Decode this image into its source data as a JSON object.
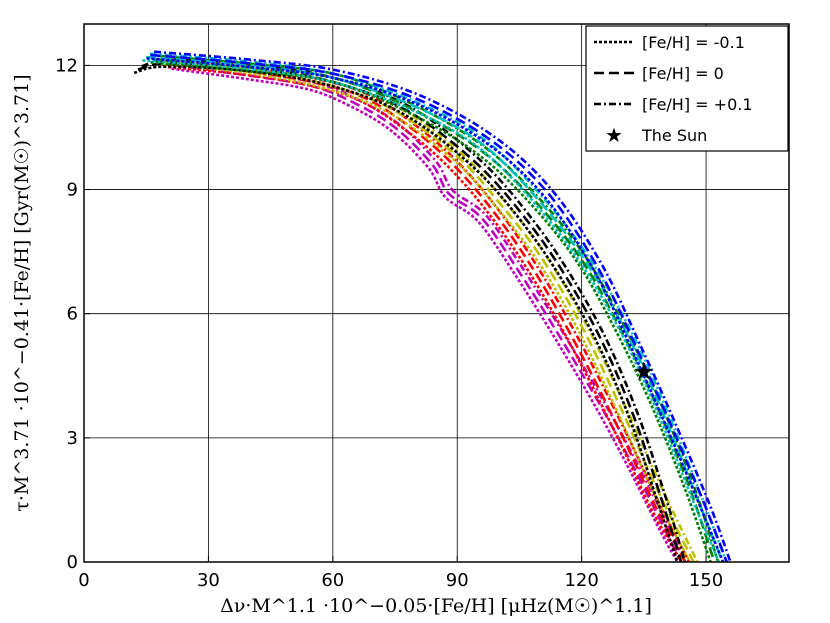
{
  "chart_data": {
    "type": "line",
    "xlabel": "Δν·M^1.1 ·10^−0.05·[Fe/H] [μHz(M☉)^1.1]",
    "ylabel": "τ·M^3.71 ·10^−0.41·[Fe/H] [Gyr(M☉)^3.71]",
    "xlim": [
      0,
      170
    ],
    "ylim": [
      0,
      13
    ],
    "xticks": [
      0,
      30,
      60,
      90,
      120,
      150
    ],
    "yticks": [
      0,
      3,
      6,
      9,
      12
    ],
    "xtick_labels": [
      "0",
      "30",
      "60",
      "90",
      "120",
      "150"
    ],
    "ytick_labels": [
      "0",
      "3",
      "6",
      "9",
      "12"
    ],
    "grid": true,
    "legend_position": "top-right",
    "legend": [
      {
        "label": "[Fe/H] = -0.1",
        "style": "dotted"
      },
      {
        "label": "[Fe/H] = 0",
        "style": "dashed"
      },
      {
        "label": "[Fe/H] = +0.1",
        "style": "dashdot"
      },
      {
        "label": "The Sun",
        "style": "star"
      }
    ],
    "sun": {
      "x": 135,
      "y": 4.6
    },
    "colors": {
      "magenta": "#bf00bf",
      "red": "#ff0000",
      "yellow": "#bfbf00",
      "black": "#000000",
      "green": "#008000",
      "cyan": "#00bfbf",
      "blue": "#0000ff"
    },
    "series": [
      {
        "color": "magenta",
        "points": [
          [
            22,
            12.0
          ],
          [
            40,
            11.75
          ],
          [
            55,
            11.5
          ],
          [
            65,
            11.1
          ],
          [
            75,
            10.5
          ],
          [
            84,
            9.6
          ],
          [
            88,
            8.9
          ],
          [
            96,
            8.3
          ],
          [
            105,
            7.0
          ],
          [
            115,
            5.4
          ],
          [
            125,
            3.7
          ],
          [
            133,
            2.2
          ],
          [
            140,
            0.8
          ],
          [
            144,
            0.0
          ]
        ]
      },
      {
        "color": "red",
        "points": [
          [
            20,
            12.05
          ],
          [
            40,
            11.85
          ],
          [
            55,
            11.6
          ],
          [
            68,
            11.2
          ],
          [
            80,
            10.4
          ],
          [
            90,
            9.5
          ],
          [
            100,
            8.3
          ],
          [
            110,
            6.8
          ],
          [
            120,
            5.0
          ],
          [
            130,
            3.0
          ],
          [
            138,
            1.3
          ],
          [
            145,
            0.0
          ]
        ]
      },
      {
        "color": "yellow",
        "points": [
          [
            19,
            12.1
          ],
          [
            40,
            11.9
          ],
          [
            60,
            11.5
          ],
          [
            75,
            10.9
          ],
          [
            90,
            9.8
          ],
          [
            100,
            8.7
          ],
          [
            110,
            7.4
          ],
          [
            120,
            5.7
          ],
          [
            130,
            3.6
          ],
          [
            138,
            1.8
          ],
          [
            147,
            0.0
          ]
        ]
      },
      {
        "color": "black",
        "points": [
          [
            13,
            11.9
          ],
          [
            20,
            12.05
          ],
          [
            40,
            11.95
          ],
          [
            60,
            11.6
          ],
          [
            78,
            10.9
          ],
          [
            95,
            9.6
          ],
          [
            108,
            8.1
          ],
          [
            118,
            6.6
          ],
          [
            126,
            5.1
          ],
          [
            133,
            3.4
          ],
          [
            139,
            1.6
          ],
          [
            144,
            0.0
          ]
        ]
      },
      {
        "color": "green",
        "points": [
          [
            17,
            12.15
          ],
          [
            40,
            11.95
          ],
          [
            60,
            11.7
          ],
          [
            78,
            11.0
          ],
          [
            95,
            10.0
          ],
          [
            108,
            8.8
          ],
          [
            120,
            7.3
          ],
          [
            130,
            5.5
          ],
          [
            138,
            3.8
          ],
          [
            146,
            1.8
          ],
          [
            152,
            0.0
          ]
        ]
      },
      {
        "color": "cyan",
        "points": [
          [
            15,
            12.2
          ],
          [
            40,
            12.0
          ],
          [
            60,
            11.7
          ],
          [
            80,
            11.0
          ],
          [
            96,
            10.1
          ],
          [
            110,
            8.7
          ],
          [
            122,
            7.1
          ],
          [
            132,
            5.3
          ],
          [
            140,
            3.5
          ],
          [
            148,
            1.5
          ],
          [
            154,
            0.0
          ]
        ]
      },
      {
        "color": "blue",
        "points": [
          [
            16,
            12.25
          ],
          [
            40,
            12.05
          ],
          [
            60,
            11.8
          ],
          [
            80,
            11.2
          ],
          [
            98,
            10.2
          ],
          [
            112,
            8.9
          ],
          [
            124,
            7.1
          ],
          [
            134,
            5.0
          ],
          [
            142,
            3.2
          ],
          [
            150,
            1.3
          ],
          [
            155,
            0.0
          ]
        ]
      }
    ]
  }
}
